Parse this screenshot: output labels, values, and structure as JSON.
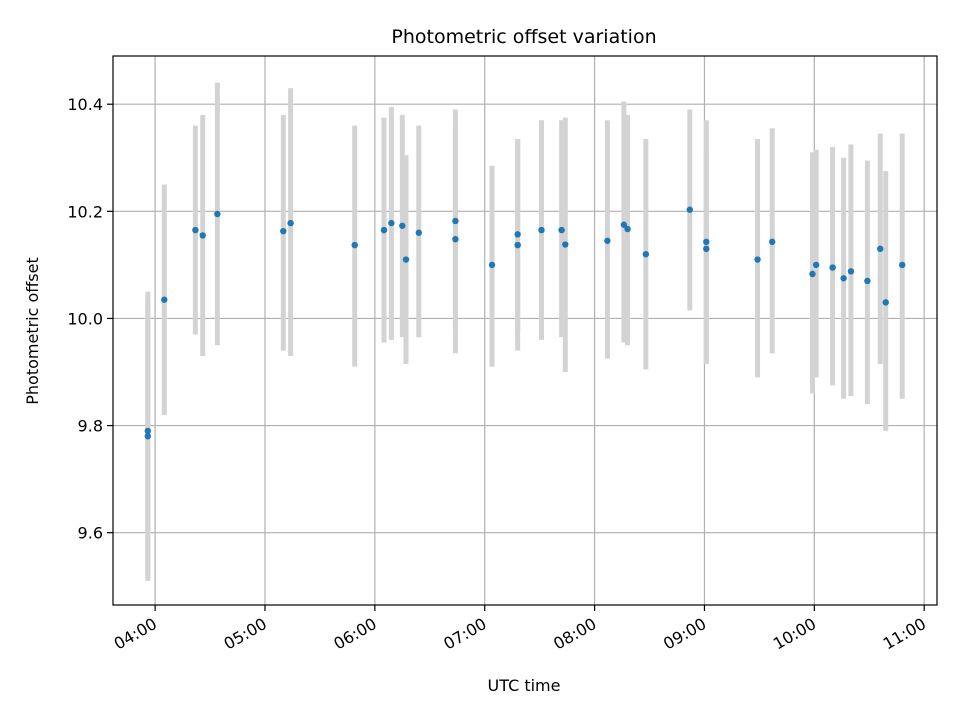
{
  "chart_data": {
    "type": "scatter",
    "title": "Photometric offset variation",
    "xlabel": "UTC time",
    "ylabel": "Photometric offset",
    "xlim": [
      "03:37",
      "11:07"
    ],
    "ylim": [
      9.465,
      10.49
    ],
    "grid": true,
    "x_ticks": [
      "04:00",
      "05:00",
      "06:00",
      "07:00",
      "08:00",
      "09:00",
      "10:00",
      "11:00"
    ],
    "y_ticks": [
      "9.6",
      "9.8",
      "10.0",
      "10.2",
      "10.4"
    ],
    "y_tick_values": [
      9.6,
      9.8,
      10.0,
      10.2,
      10.4
    ],
    "colors": {
      "marker": "#1f77b4",
      "errorbar": "#d3d3d3",
      "grid": "#b0b0b0"
    },
    "points": [
      {
        "x": "03:56",
        "y": 9.79,
        "ylo": 9.51,
        "yhi": 10.05
      },
      {
        "x": "03:56",
        "y": 9.78,
        "ylo": 9.52,
        "yhi": 10.03
      },
      {
        "x": "04:05",
        "y": 10.035,
        "ylo": 9.82,
        "yhi": 10.25
      },
      {
        "x": "04:22",
        "y": 10.165,
        "ylo": 9.97,
        "yhi": 10.36
      },
      {
        "x": "04:26",
        "y": 10.155,
        "ylo": 9.93,
        "yhi": 10.38
      },
      {
        "x": "04:34",
        "y": 10.195,
        "ylo": 9.95,
        "yhi": 10.44
      },
      {
        "x": "05:10",
        "y": 10.163,
        "ylo": 9.94,
        "yhi": 10.38
      },
      {
        "x": "05:14",
        "y": 10.178,
        "ylo": 9.93,
        "yhi": 10.43
      },
      {
        "x": "05:49",
        "y": 10.137,
        "ylo": 9.91,
        "yhi": 10.36
      },
      {
        "x": "06:05",
        "y": 10.165,
        "ylo": 9.955,
        "yhi": 10.375
      },
      {
        "x": "06:09",
        "y": 10.178,
        "ylo": 9.96,
        "yhi": 10.395
      },
      {
        "x": "06:15",
        "y": 10.173,
        "ylo": 9.965,
        "yhi": 10.38
      },
      {
        "x": "06:17",
        "y": 10.11,
        "ylo": 9.915,
        "yhi": 10.305
      },
      {
        "x": "06:24",
        "y": 10.16,
        "ylo": 9.965,
        "yhi": 10.36
      },
      {
        "x": "06:44",
        "y": 10.182,
        "ylo": 9.975,
        "yhi": 10.39
      },
      {
        "x": "06:44",
        "y": 10.148,
        "ylo": 9.935,
        "yhi": 10.36
      },
      {
        "x": "07:04",
        "y": 10.1,
        "ylo": 9.91,
        "yhi": 10.285
      },
      {
        "x": "07:18",
        "y": 10.157,
        "ylo": 9.975,
        "yhi": 10.335
      },
      {
        "x": "07:18",
        "y": 10.137,
        "ylo": 9.94,
        "yhi": 10.335
      },
      {
        "x": "07:31",
        "y": 10.165,
        "ylo": 9.96,
        "yhi": 10.37
      },
      {
        "x": "07:42",
        "y": 10.165,
        "ylo": 9.965,
        "yhi": 10.37
      },
      {
        "x": "07:44",
        "y": 10.138,
        "ylo": 9.9,
        "yhi": 10.375
      },
      {
        "x": "08:07",
        "y": 10.145,
        "ylo": 9.925,
        "yhi": 10.37
      },
      {
        "x": "08:16",
        "y": 10.175,
        "ylo": 9.955,
        "yhi": 10.405
      },
      {
        "x": "08:18",
        "y": 10.167,
        "ylo": 9.95,
        "yhi": 10.38
      },
      {
        "x": "08:28",
        "y": 10.12,
        "ylo": 9.905,
        "yhi": 10.335
      },
      {
        "x": "08:52",
        "y": 10.203,
        "ylo": 10.015,
        "yhi": 10.39
      },
      {
        "x": "09:01",
        "y": 10.143,
        "ylo": 9.915,
        "yhi": 10.37
      },
      {
        "x": "09:01",
        "y": 10.13,
        "ylo": 9.92,
        "yhi": 10.31
      },
      {
        "x": "09:29",
        "y": 10.11,
        "ylo": 9.89,
        "yhi": 10.335
      },
      {
        "x": "09:37",
        "y": 10.143,
        "ylo": 9.935,
        "yhi": 10.355
      },
      {
        "x": "09:59",
        "y": 10.083,
        "ylo": 9.86,
        "yhi": 10.31
      },
      {
        "x": "10:01",
        "y": 10.1,
        "ylo": 9.89,
        "yhi": 10.315
      },
      {
        "x": "10:10",
        "y": 10.095,
        "ylo": 9.875,
        "yhi": 10.32
      },
      {
        "x": "10:16",
        "y": 10.075,
        "ylo": 9.85,
        "yhi": 10.3
      },
      {
        "x": "10:20",
        "y": 10.088,
        "ylo": 9.855,
        "yhi": 10.325
      },
      {
        "x": "10:29",
        "y": 10.07,
        "ylo": 9.84,
        "yhi": 10.295
      },
      {
        "x": "10:36",
        "y": 10.13,
        "ylo": 9.915,
        "yhi": 10.345
      },
      {
        "x": "10:39",
        "y": 10.03,
        "ylo": 9.79,
        "yhi": 10.275
      },
      {
        "x": "10:48",
        "y": 10.1,
        "ylo": 9.85,
        "yhi": 10.345
      }
    ]
  }
}
